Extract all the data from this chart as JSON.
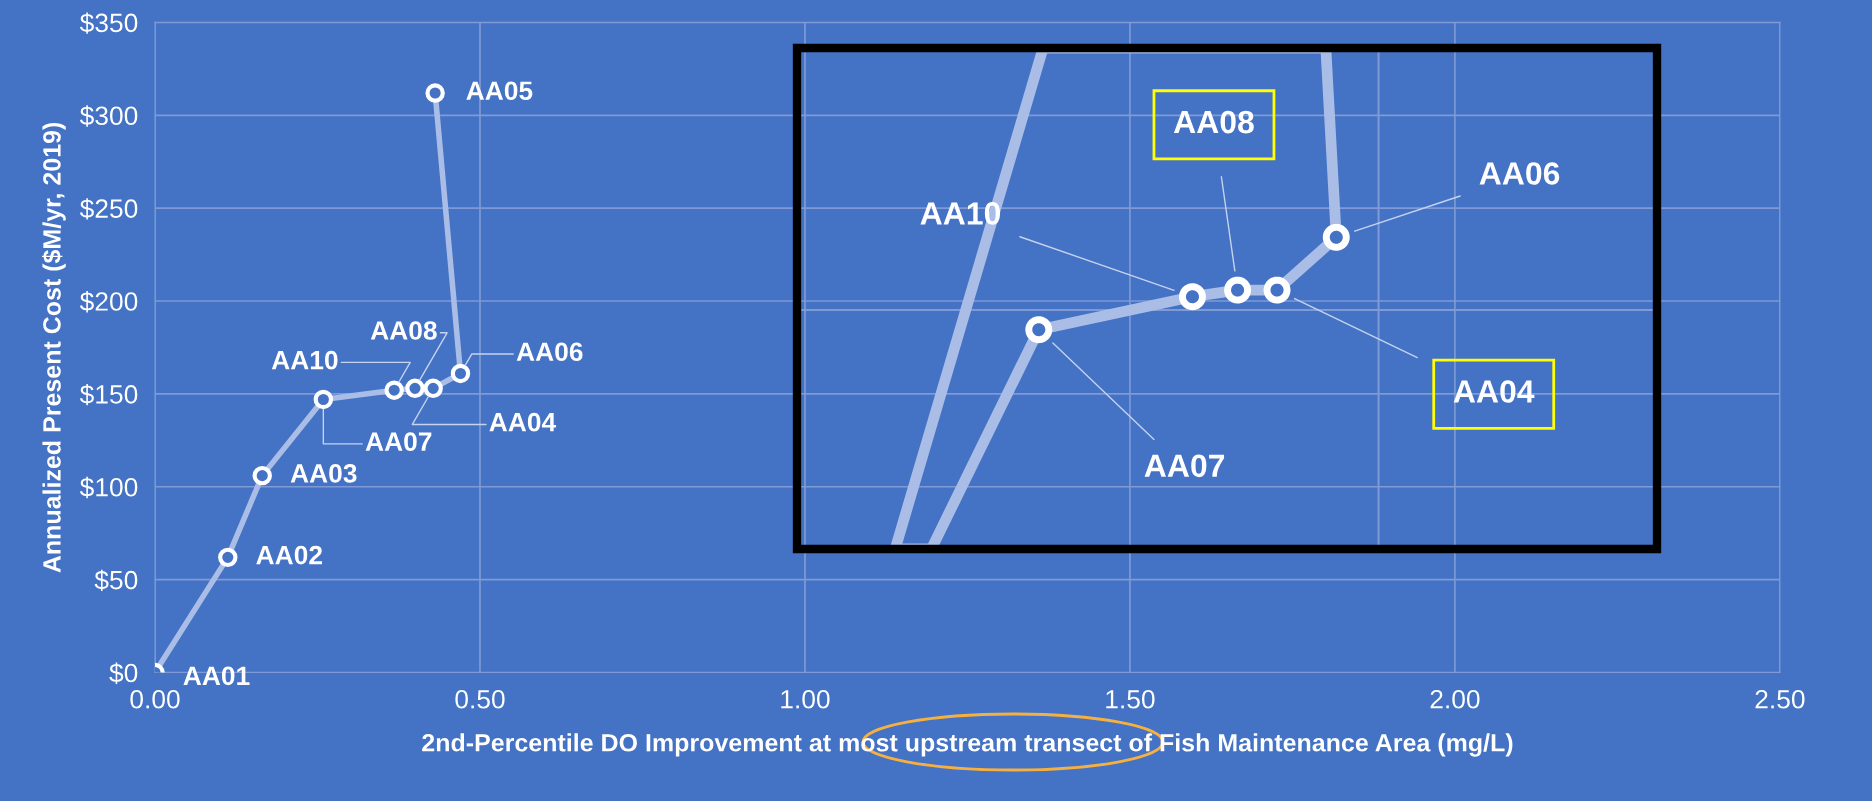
{
  "chart_data": {
    "type": "line",
    "xlabel": "2nd-Percentile DO Improvement at most upstream transect of Fish Maintenance Area (mg/L)",
    "ylabel": "Annualized Present Cost ($M/yr, 2019)",
    "x": [
      0.0,
      0.112,
      0.165,
      0.259,
      0.368,
      0.4,
      0.428,
      0.47,
      0.431
    ],
    "series": [
      {
        "color": "#a9bde6",
        "values": [
          0,
          62,
          106,
          147,
          152,
          153,
          153,
          161,
          312
        ]
      }
    ],
    "xlim": [
      0,
      2.5
    ],
    "xticks": [
      {
        "value": 0,
        "label": "0.00"
      },
      {
        "value": 0.5,
        "label": "0.50"
      },
      {
        "value": 1,
        "label": "1.00"
      },
      {
        "value": 1.5,
        "label": "1.50"
      },
      {
        "value": 2,
        "label": "2.00"
      },
      {
        "value": 2.5,
        "label": "2.50"
      }
    ],
    "ylim": [
      0,
      350
    ],
    "yticks": [
      {
        "value": 0,
        "label": "$0"
      },
      {
        "value": 50,
        "label": "$50"
      },
      {
        "value": 100,
        "label": "$100"
      },
      {
        "value": 150,
        "label": "$150"
      },
      {
        "value": 200,
        "label": "$200"
      },
      {
        "value": 250,
        "label": "$250"
      },
      {
        "value": 300,
        "label": "$300"
      },
      {
        "value": 350,
        "label": "$350"
      }
    ],
    "grid": true,
    "marker": "circle",
    "line_style": "solid",
    "annotations": [
      {
        "text": "AA01",
        "x": 0.0,
        "y": 0
      },
      {
        "text": "AA02",
        "x": 0.112,
        "y": 62
      },
      {
        "text": "AA03",
        "x": 0.165,
        "y": 106
      },
      {
        "text": "AA07",
        "x": 0.259,
        "y": 147
      },
      {
        "text": "AA10",
        "x": 0.368,
        "y": 152
      },
      {
        "text": "AA08",
        "x": 0.4,
        "y": 153
      },
      {
        "text": "AA04",
        "x": 0.428,
        "y": 153
      },
      {
        "text": "AA06",
        "x": 0.47,
        "y": 161
      },
      {
        "text": "AA05",
        "x": 0.431,
        "y": 312
      },
      "AA10",
      "AA08",
      "AA06",
      "AA04",
      "AA07"
    ]
  }
}
